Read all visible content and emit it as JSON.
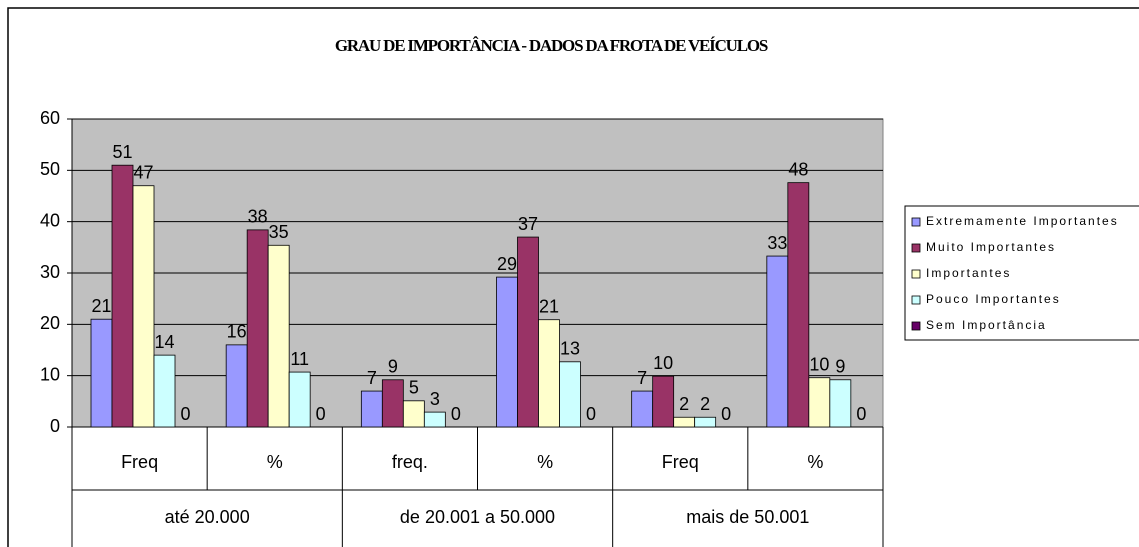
{
  "chart_data": {
    "type": "bar",
    "title": "GRAU DE IMPORTÂNCIA - DADOS DA FROTA DE VEÍCULOS",
    "categories": [
      "Freq",
      "%",
      "freq.",
      "%",
      "Freq",
      "%"
    ],
    "groups": [
      {
        "label": "até 20.000",
        "span": 2
      },
      {
        "label": "de 20.001 a 50.000",
        "span": 2
      },
      {
        "label": "mais de 50.001",
        "span": 2
      }
    ],
    "series": [
      {
        "name": "Extremamente Importantes",
        "color": "#9999ff",
        "values": [
          21,
          16,
          7,
          29.2,
          7,
          33.3
        ],
        "value_labels": [
          "21",
          "16",
          "7",
          "29",
          "7",
          "33"
        ]
      },
      {
        "name": "Muito Importantes",
        "color": "#993366",
        "values": [
          51,
          38.4,
          9.2,
          37,
          9.9,
          47.6
        ],
        "value_labels": [
          "51",
          "38",
          "9",
          "37",
          "10",
          "48"
        ]
      },
      {
        "name": "Importantes",
        "color": "#ffffcc",
        "values": [
          47,
          35.4,
          5.1,
          20.9,
          1.9,
          9.6
        ],
        "value_labels": [
          "47",
          "35",
          "5",
          "21",
          "2",
          "10"
        ]
      },
      {
        "name": "Pouco Importantes",
        "color": "#ccffff",
        "values": [
          14,
          10.7,
          2.9,
          12.7,
          1.9,
          9.2
        ],
        "value_labels": [
          "14",
          "11",
          "3",
          "13",
          "2",
          "9"
        ]
      },
      {
        "name": "Sem Importância",
        "color": "#660066",
        "values": [
          0,
          0,
          0,
          0,
          0,
          0
        ],
        "value_labels": [
          "0",
          "0",
          "0",
          "0",
          "0",
          "0"
        ]
      }
    ],
    "ylim": [
      0,
      60
    ],
    "yticks": [
      0,
      10,
      20,
      30,
      40,
      50,
      60
    ],
    "grid": true,
    "legend": "right"
  }
}
